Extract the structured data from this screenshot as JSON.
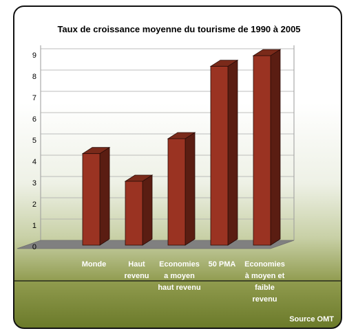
{
  "chart_data": {
    "type": "bar",
    "title": "Taux de croissance moyenne du tourisme de 1990 à 2005",
    "categories": [
      [
        "Monde"
      ],
      [
        "Haut",
        "revenu"
      ],
      [
        "Economies",
        "a moyen",
        "haut revenu"
      ],
      [
        "50 PMA"
      ],
      [
        "Economies",
        "à moyen et",
        "faible",
        "revenu"
      ]
    ],
    "values": [
      4.3,
      3.0,
      5.0,
      8.4,
      8.9
    ],
    "yticks": [
      "0",
      "1",
      "2",
      "3",
      "4",
      "5",
      "6",
      "7",
      "8",
      "9"
    ],
    "ylim": [
      0,
      9
    ],
    "grid": true,
    "source": "Source OMT",
    "colors": {
      "bar_front": "#9a3322",
      "bar_side": "#5a1d12",
      "bar_top": "#7a2a1a",
      "floor": "#808080",
      "grid": "#a8a8a8"
    }
  }
}
